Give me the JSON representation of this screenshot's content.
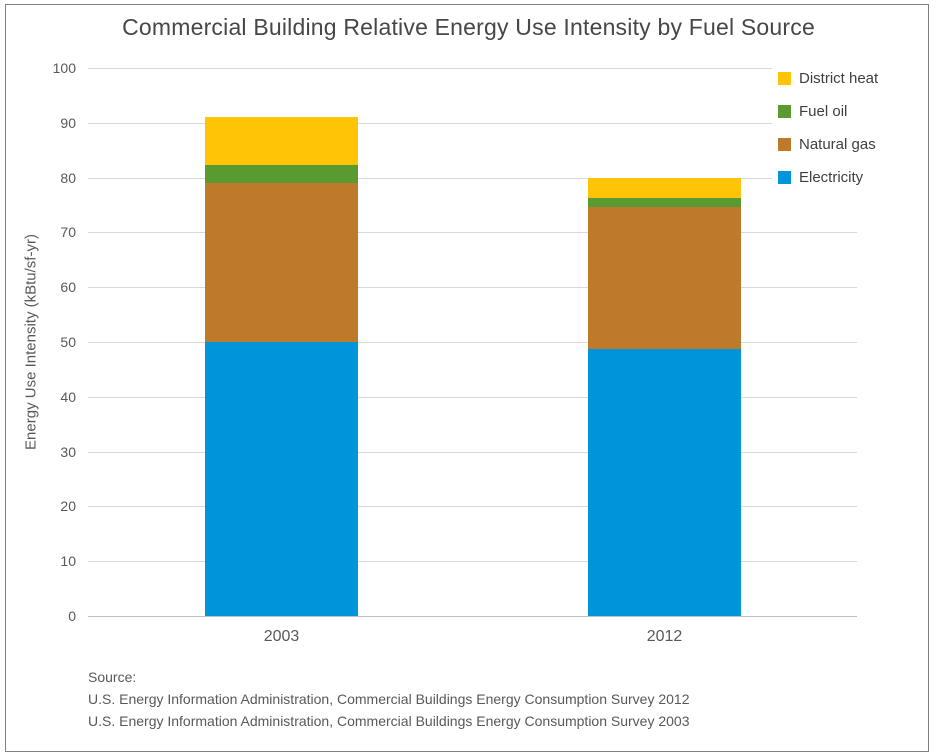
{
  "title": "Commercial Building Relative Energy Use Intensity by Fuel Source",
  "chart_data": {
    "type": "bar",
    "stacked": true,
    "title": "Commercial Building Relative Energy Use Intensity by Fuel Source",
    "categories": [
      "2003",
      "2012"
    ],
    "series": [
      {
        "name": "Electricity",
        "color": "#0095da",
        "values": [
          50.0,
          48.8
        ]
      },
      {
        "name": "Natural gas",
        "color": "#bd7a2a",
        "values": [
          29.0,
          25.9
        ]
      },
      {
        "name": "Fuel oil",
        "color": "#5a9b31",
        "values": [
          3.3,
          1.5
        ]
      },
      {
        "name": "District heat",
        "color": "#ffc405",
        "values": [
          8.7,
          3.8
        ]
      }
    ],
    "totals": [
      91,
      80
    ],
    "xlabel": "",
    "ylabel": "Energy Use Intensity (kBtu/sf-yr)",
    "ylim": [
      0,
      100
    ],
    "yticks": [
      0,
      10,
      20,
      30,
      40,
      50,
      60,
      70,
      80,
      90,
      100
    ],
    "grid": true,
    "legend_position": "top-right",
    "legend_order": [
      "District heat",
      "Fuel oil",
      "Natural gas",
      "Electricity"
    ]
  },
  "source": {
    "label": "Source:",
    "lines": [
      "U.S. Energy Information Administration, Commercial Buildings Energy Consumption Survey 2012",
      "U.S. Energy Information Administration, Commercial Buildings Energy Consumption Survey 2003"
    ]
  },
  "palette": {
    "gridline": "#d9d9d9",
    "axis_line": "#bfbfbf",
    "text_gray": "#595959",
    "title_gray": "#474747"
  }
}
